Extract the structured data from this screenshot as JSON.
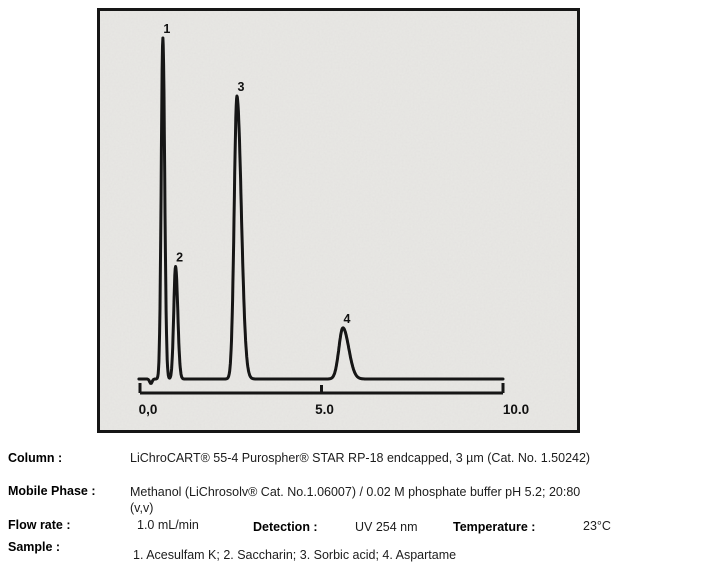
{
  "chart_data": {
    "type": "line",
    "title": "",
    "xlabel": "",
    "ylabel": "",
    "grid": false,
    "legend": false,
    "x_axis": {
      "min": 0,
      "max": 10,
      "ticks": [
        {
          "t": 0,
          "label": "0,0"
        },
        {
          "t": 5,
          "label": "5.0"
        },
        {
          "t": 10,
          "label": "10.0"
        }
      ]
    },
    "baseline_rel": 0,
    "trace_t_range": [
      -0.03,
      10.0
    ],
    "injection_dip": {
      "t": 0.3,
      "rel_depth": 0.013,
      "sigma": 0.035
    },
    "peaks": [
      {
        "label": "1",
        "compound": "Acesulfam K",
        "rt": 0.63,
        "rel_height": 1.0,
        "sigma_left": 0.045,
        "sigma_right": 0.05
      },
      {
        "label": "2",
        "compound": "Saccharin",
        "rt": 0.98,
        "rel_height": 0.33,
        "sigma_left": 0.05,
        "sigma_right": 0.06
      },
      {
        "label": "3",
        "compound": "Sorbic acid",
        "rt": 2.67,
        "rel_height": 0.83,
        "sigma_left": 0.075,
        "sigma_right": 0.12
      },
      {
        "label": "4",
        "compound": "Aspartame",
        "rt": 5.59,
        "rel_height": 0.15,
        "sigma_left": 0.11,
        "sigma_right": 0.16
      }
    ]
  },
  "meta": {
    "column": {
      "label": "Column :",
      "value": "LiChroCART® 55-4 Purospher® STAR RP-18 endcapped, 3 µm (Cat. No. 1.50242)"
    },
    "mobile_phase": {
      "label": "Mobile Phase :",
      "value": "Methanol (LiChrosolv® Cat. No.1.06007) / 0.02 M phosphate buffer pH 5.2; 20:80\n(v,v)"
    },
    "flow_rate": {
      "label": "Flow rate :",
      "value": "1.0 mL/min"
    },
    "detection": {
      "label": "Detection :",
      "value": "UV 254 nm"
    },
    "temperature": {
      "label": "Temperature :",
      "value": "23°C"
    },
    "sample": {
      "label": "Sample :",
      "value": "1. Acesulfam K; 2. Saccharin; 3. Sorbic acid; 4. Aspartame"
    }
  }
}
